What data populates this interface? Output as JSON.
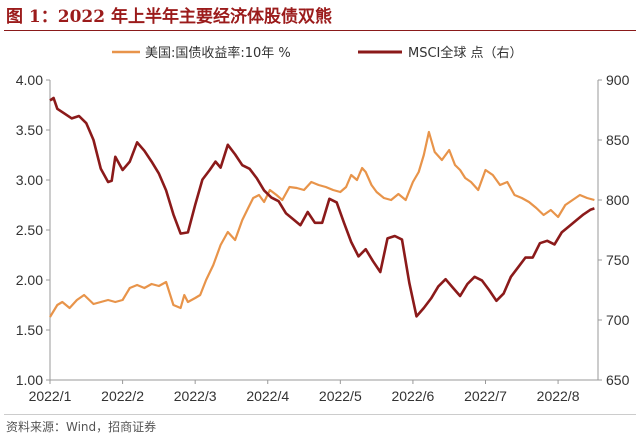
{
  "figure": {
    "title": "图 1：2022 年上半年主要经济体股债双熊",
    "source": "资料来源：Wind，招商证券"
  },
  "colors": {
    "treasury": "#e8944a",
    "msci": "#8b1a1a",
    "axis": "#999999",
    "text": "#333333",
    "title": "#9b1b1b"
  },
  "chart_data": {
    "type": "line",
    "legend_position": "top",
    "grid": false,
    "x_range": [
      0,
      7.55
    ],
    "x_ticks": [
      {
        "label": "2022/1",
        "pos": 0
      },
      {
        "label": "2022/2",
        "pos": 1
      },
      {
        "label": "2022/3",
        "pos": 2
      },
      {
        "label": "2022/4",
        "pos": 3
      },
      {
        "label": "2022/5",
        "pos": 4
      },
      {
        "label": "2022/6",
        "pos": 5
      },
      {
        "label": "2022/7",
        "pos": 6
      },
      {
        "label": "2022/8",
        "pos": 7
      }
    ],
    "y_left": {
      "range": [
        1.0,
        4.0
      ],
      "ticks": [
        "1.00",
        "1.50",
        "2.00",
        "2.50",
        "3.00",
        "3.50",
        "4.00"
      ]
    },
    "y_right": {
      "range": [
        650,
        900
      ],
      "ticks": [
        "650",
        "700",
        "750",
        "800",
        "850",
        "900"
      ]
    },
    "series": [
      {
        "name": "美国:国债收益率:10年 %",
        "axis": "left",
        "color": "#e8944a",
        "x": [
          0,
          0.1,
          0.17,
          0.27,
          0.37,
          0.47,
          0.6,
          0.7,
          0.8,
          0.9,
          1.0,
          1.1,
          1.2,
          1.3,
          1.4,
          1.5,
          1.6,
          1.7,
          1.8,
          1.85,
          1.9,
          2.0,
          2.07,
          2.15,
          2.25,
          2.35,
          2.45,
          2.55,
          2.65,
          2.73,
          2.8,
          2.88,
          2.95,
          3.03,
          3.12,
          3.2,
          3.3,
          3.4,
          3.5,
          3.6,
          3.7,
          3.8,
          3.9,
          4.0,
          4.08,
          4.15,
          4.23,
          4.3,
          4.35,
          4.43,
          4.5,
          4.6,
          4.7,
          4.8,
          4.9,
          5.0,
          5.08,
          5.15,
          5.22,
          5.3,
          5.4,
          5.5,
          5.58,
          5.65,
          5.72,
          5.8,
          5.9,
          6.0,
          6.1,
          6.2,
          6.3,
          6.4,
          6.5,
          6.6,
          6.7,
          6.8,
          6.9,
          7.0,
          7.1,
          7.2,
          7.3,
          7.4,
          7.5
        ],
        "values": [
          1.63,
          1.75,
          1.78,
          1.72,
          1.8,
          1.85,
          1.76,
          1.78,
          1.8,
          1.78,
          1.8,
          1.92,
          1.95,
          1.92,
          1.96,
          1.94,
          1.98,
          1.75,
          1.72,
          1.85,
          1.78,
          1.82,
          1.85,
          2.0,
          2.15,
          2.35,
          2.48,
          2.4,
          2.6,
          2.72,
          2.82,
          2.85,
          2.78,
          2.9,
          2.85,
          2.8,
          2.93,
          2.92,
          2.9,
          2.98,
          2.95,
          2.93,
          2.9,
          2.88,
          2.93,
          3.05,
          3.0,
          3.12,
          3.08,
          2.95,
          2.88,
          2.82,
          2.8,
          2.86,
          2.8,
          2.98,
          3.08,
          3.25,
          3.48,
          3.28,
          3.2,
          3.3,
          3.15,
          3.1,
          3.02,
          2.98,
          2.9,
          3.1,
          3.05,
          2.95,
          2.98,
          2.85,
          2.82,
          2.78,
          2.72,
          2.65,
          2.7,
          2.63,
          2.75,
          2.8,
          2.85,
          2.82,
          2.8
        ]
      },
      {
        "name": "MSCI全球 点（右）",
        "axis": "right",
        "color": "#8b1a1a",
        "x": [
          0,
          0.05,
          0.1,
          0.2,
          0.3,
          0.4,
          0.5,
          0.6,
          0.7,
          0.8,
          0.85,
          0.9,
          1.0,
          1.1,
          1.2,
          1.3,
          1.4,
          1.5,
          1.6,
          1.7,
          1.8,
          1.9,
          2.0,
          2.1,
          2.2,
          2.28,
          2.35,
          2.45,
          2.55,
          2.65,
          2.75,
          2.85,
          2.95,
          3.05,
          3.15,
          3.25,
          3.35,
          3.45,
          3.55,
          3.65,
          3.75,
          3.85,
          3.95,
          4.05,
          4.15,
          4.25,
          4.35,
          4.45,
          4.55,
          4.65,
          4.75,
          4.85,
          4.95,
          5.05,
          5.15,
          5.25,
          5.35,
          5.45,
          5.55,
          5.65,
          5.75,
          5.85,
          5.95,
          6.05,
          6.15,
          6.25,
          6.35,
          6.45,
          6.55,
          6.65,
          6.75,
          6.85,
          6.95,
          7.05,
          7.15,
          7.25,
          7.35,
          7.45,
          7.5
        ],
        "values": [
          883,
          885,
          876,
          872,
          868,
          870,
          864,
          850,
          826,
          815,
          816,
          836,
          825,
          832,
          848,
          841,
          832,
          822,
          808,
          788,
          772,
          773,
          796,
          817,
          825,
          832,
          827,
          846,
          838,
          829,
          826,
          818,
          808,
          802,
          799,
          789,
          784,
          779,
          790,
          781,
          781,
          801,
          798,
          781,
          765,
          753,
          759,
          749,
          740,
          768,
          770,
          767,
          731,
          703,
          710,
          718,
          728,
          734,
          727,
          720,
          730,
          736,
          733,
          725,
          716,
          722,
          736,
          744,
          752,
          752,
          764,
          766,
          763,
          773,
          778,
          783,
          788,
          792,
          793
        ]
      }
    ]
  }
}
